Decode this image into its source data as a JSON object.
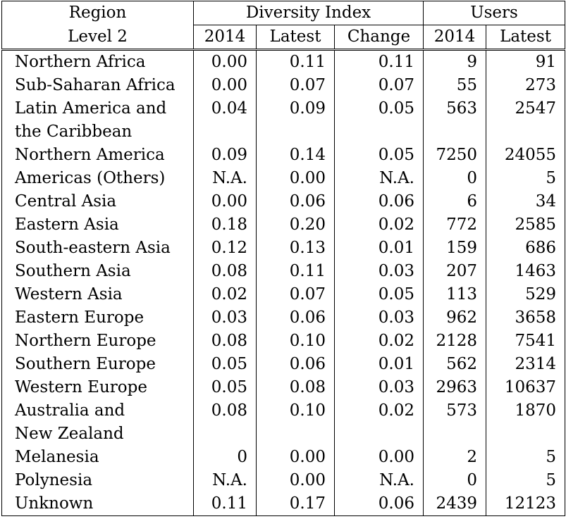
{
  "header": {
    "region_label_1": "Region",
    "region_label_2": "Level 2",
    "diversity_group": "Diversity Index",
    "users_group": "Users",
    "cols": [
      "2014",
      "Latest",
      "Change",
      "2014",
      "Latest"
    ]
  },
  "rows": [
    {
      "region": "Northern Africa",
      "cont": "",
      "d2014": "0.00",
      "dLatest": "0.11",
      "dChange": "0.11",
      "u2014": "9",
      "uLatest": "91"
    },
    {
      "region": "Sub-Saharan Africa",
      "cont": "",
      "d2014": "0.00",
      "dLatest": "0.07",
      "dChange": "0.07",
      "u2014": "55",
      "uLatest": "273"
    },
    {
      "region": "Latin America and",
      "cont": "the Caribbean",
      "d2014": "0.04",
      "dLatest": "0.09",
      "dChange": "0.05",
      "u2014": "563",
      "uLatest": "2547"
    },
    {
      "region": "Northern America",
      "cont": "",
      "d2014": "0.09",
      "dLatest": "0.14",
      "dChange": "0.05",
      "u2014": "7250",
      "uLatest": "24055"
    },
    {
      "region": "Americas (Others)",
      "cont": "",
      "d2014": "N.A.",
      "dLatest": "0.00",
      "dChange": "N.A.",
      "u2014": "0",
      "uLatest": "5"
    },
    {
      "region": "Central Asia",
      "cont": "",
      "d2014": "0.00",
      "dLatest": "0.06",
      "dChange": "0.06",
      "u2014": "6",
      "uLatest": "34"
    },
    {
      "region": "Eastern Asia",
      "cont": "",
      "d2014": "0.18",
      "dLatest": "0.20",
      "dChange": "0.02",
      "u2014": "772",
      "uLatest": "2585"
    },
    {
      "region": "South-eastern Asia",
      "cont": "",
      "d2014": "0.12",
      "dLatest": "0.13",
      "dChange": "0.01",
      "u2014": "159",
      "uLatest": "686"
    },
    {
      "region": "Southern Asia",
      "cont": "",
      "d2014": "0.08",
      "dLatest": "0.11",
      "dChange": "0.03",
      "u2014": "207",
      "uLatest": "1463"
    },
    {
      "region": "Western Asia",
      "cont": "",
      "d2014": "0.02",
      "dLatest": "0.07",
      "dChange": "0.05",
      "u2014": "113",
      "uLatest": "529"
    },
    {
      "region": "Eastern Europe",
      "cont": "",
      "d2014": "0.03",
      "dLatest": "0.06",
      "dChange": "0.03",
      "u2014": "962",
      "uLatest": "3658"
    },
    {
      "region": "Northern Europe",
      "cont": "",
      "d2014": "0.08",
      "dLatest": "0.10",
      "dChange": "0.02",
      "u2014": "2128",
      "uLatest": "7541"
    },
    {
      "region": "Southern Europe",
      "cont": "",
      "d2014": "0.05",
      "dLatest": "0.06",
      "dChange": "0.01",
      "u2014": "562",
      "uLatest": "2314"
    },
    {
      "region": "Western Europe",
      "cont": "",
      "d2014": "0.05",
      "dLatest": "0.08",
      "dChange": "0.03",
      "u2014": "2963",
      "uLatest": "10637"
    },
    {
      "region": "Australia and",
      "cont": "New Zealand",
      "d2014": "0.08",
      "dLatest": "0.10",
      "dChange": "0.02",
      "u2014": "573",
      "uLatest": "1870"
    },
    {
      "region": "Melanesia",
      "cont": "",
      "d2014": "0",
      "dLatest": "0.00",
      "dChange": "0.00",
      "u2014": "2",
      "uLatest": "5"
    },
    {
      "region": "Polynesia",
      "cont": "",
      "d2014": "N.A.",
      "dLatest": "0.00",
      "dChange": "N.A.",
      "u2014": "0",
      "uLatest": "5"
    },
    {
      "region": "Unknown",
      "cont": "",
      "d2014": "0.11",
      "dLatest": "0.17",
      "dChange": "0.06",
      "u2014": "2439",
      "uLatest": "12123"
    }
  ]
}
